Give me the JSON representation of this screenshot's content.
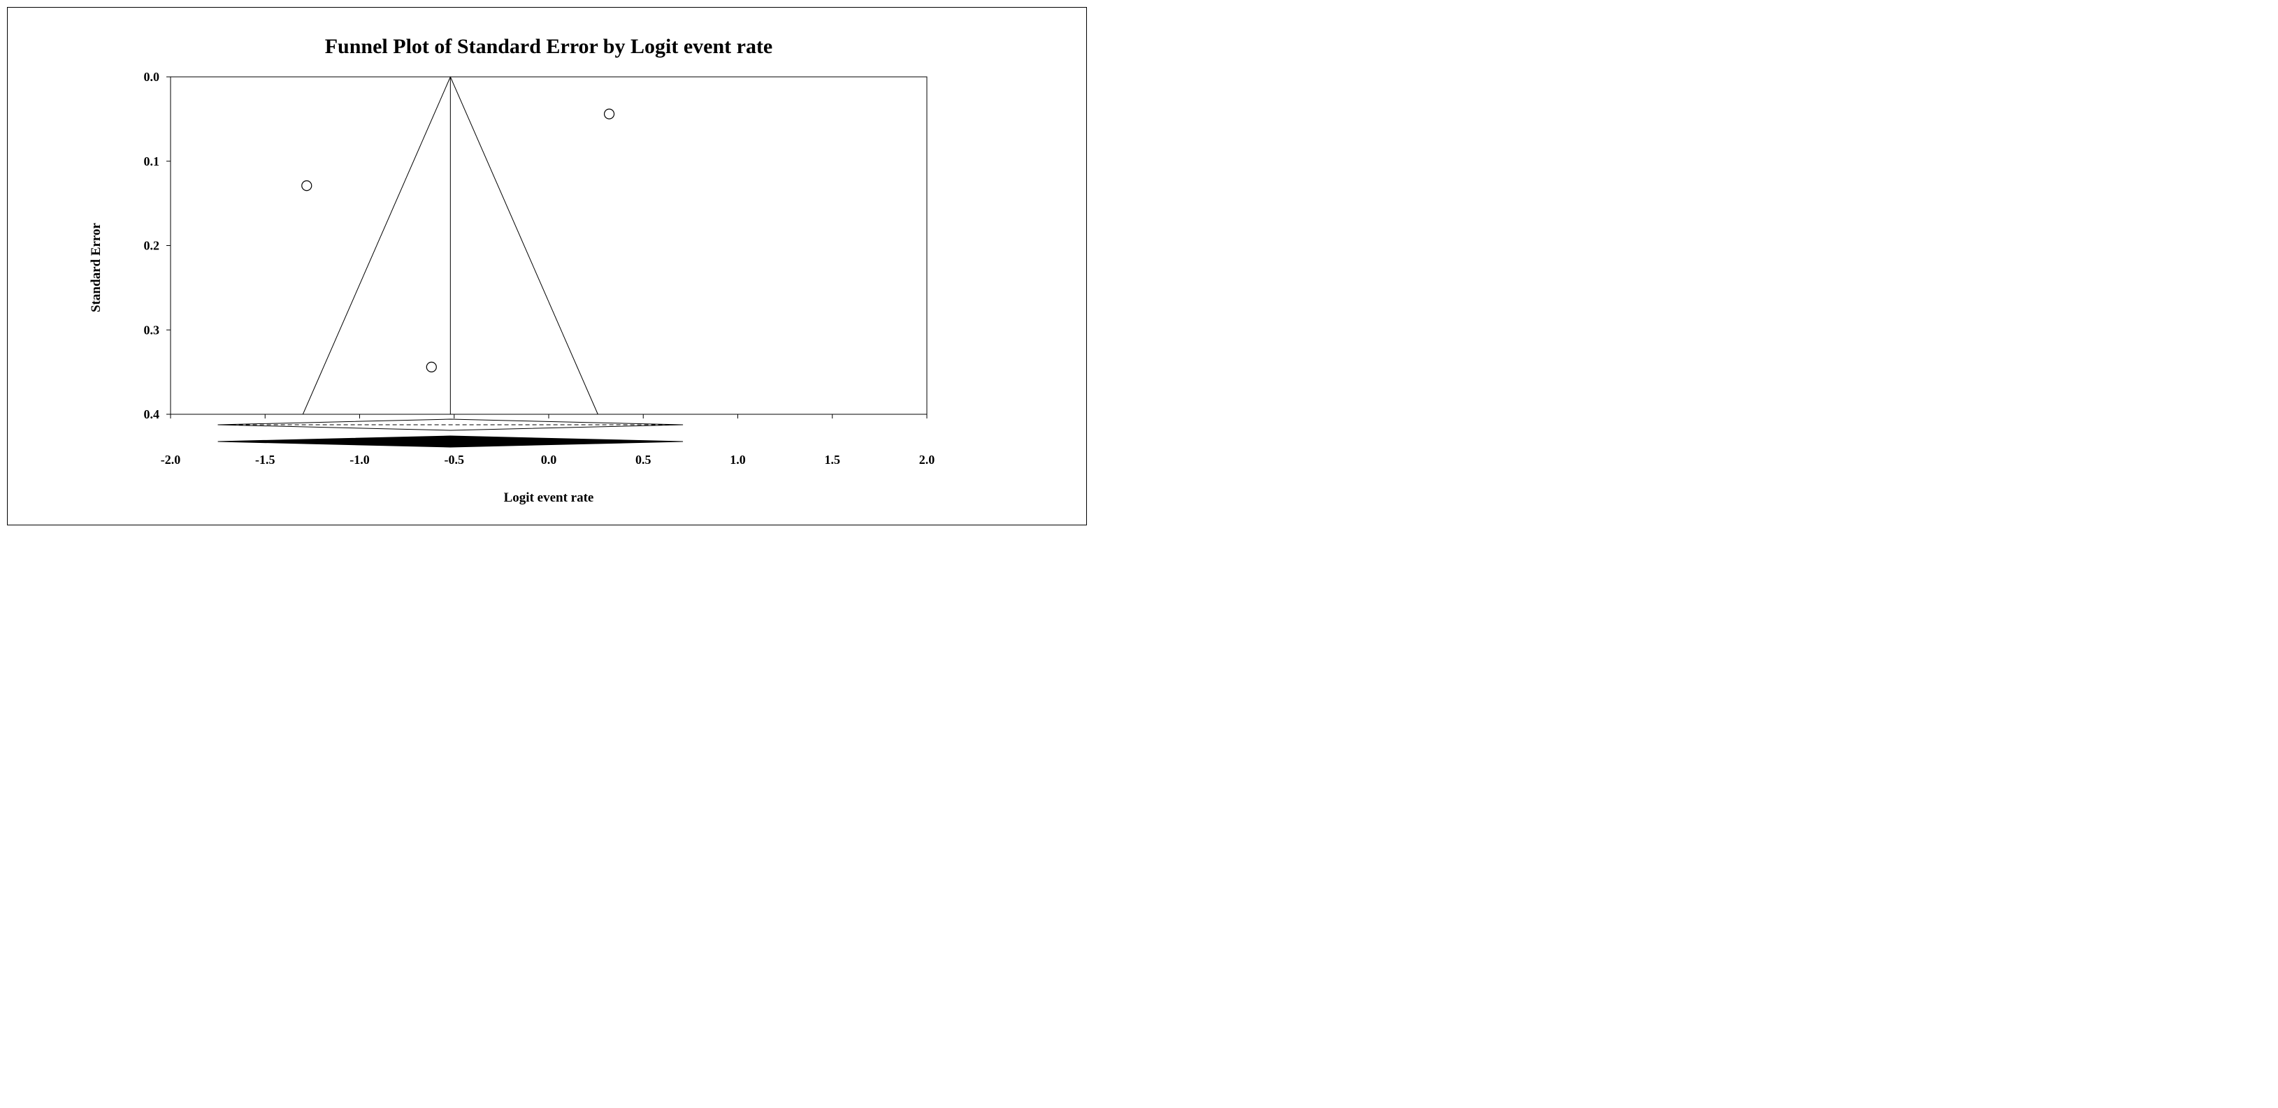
{
  "chart_data": {
    "type": "scatter",
    "title": "Funnel Plot of Standard Error by Logit event rate",
    "xlabel": "Logit event rate",
    "ylabel": "Standard Error",
    "xlim": [
      -2.0,
      2.0
    ],
    "ylim": [
      0.0,
      0.4
    ],
    "y_inverted": true,
    "x_ticks": [
      "-2.0",
      "-1.5",
      "-1.0",
      "-0.5",
      "0.0",
      "0.5",
      "1.0",
      "1.5",
      "2.0"
    ],
    "y_ticks": [
      "0.0",
      "0.1",
      "0.2",
      "0.3",
      "0.4"
    ],
    "grid": false,
    "legend": "none",
    "points": [
      {
        "x": -1.28,
        "y": 0.129
      },
      {
        "x": 0.32,
        "y": 0.044
      },
      {
        "x": -0.62,
        "y": 0.344
      }
    ],
    "funnel": {
      "center": -0.52,
      "apex_se": 0.0,
      "base_se": 0.4,
      "left_at_base": -1.3,
      "right_at_base": 0.26
    },
    "summary_diamonds": [
      {
        "style": "outline",
        "left": -1.75,
        "center": -0.52,
        "right": 0.71
      },
      {
        "style": "filled",
        "left": -1.75,
        "center": -0.52,
        "right": 0.71
      }
    ]
  }
}
